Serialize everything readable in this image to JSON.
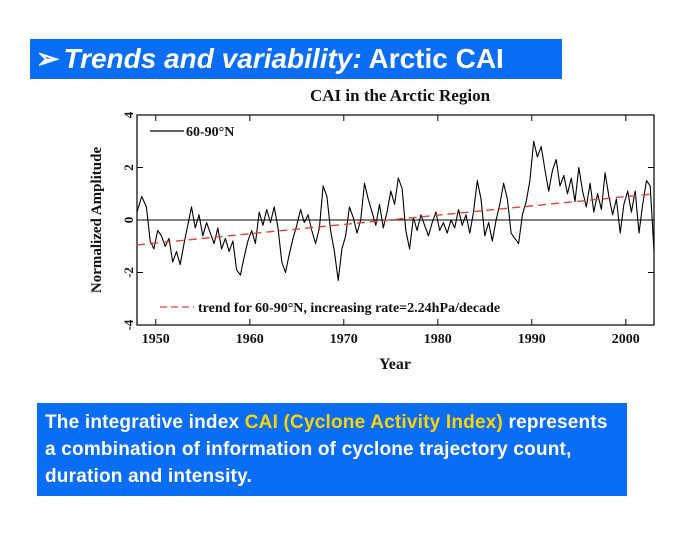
{
  "slide": {
    "title_arrow": "➢",
    "title_italic": "Trends and variability:",
    "title_rest": "Arctic CAI",
    "colors": {
      "banner_bg": "#0a6df5",
      "highlight": "#ffd400",
      "trend": "#e0443a"
    }
  },
  "info": {
    "text_before": "The integrative index",
    "highlight": "CAI (Cyclone Activity Index)",
    "text_after": "represents a combination of information of cyclone trajectory count, duration and intensity."
  },
  "chart_data": {
    "type": "line",
    "title": "CAI in the Arctic Region",
    "xlabel": "Year",
    "ylabel": "Normalized Amplitude",
    "xlim": [
      1948,
      2003
    ],
    "ylim": [
      -4,
      4
    ],
    "x_ticks": [
      1950,
      1960,
      1970,
      1980,
      1990,
      2000
    ],
    "y_ticks": [
      -4,
      -2,
      0,
      2,
      4
    ],
    "zero_line": true,
    "legend_position": "top-left",
    "series": [
      {
        "name": "60-90°N",
        "color": "#000000",
        "x": [
          1948.0,
          1948.5,
          1949.0,
          1949.4,
          1949.8,
          1950.2,
          1950.6,
          1951.0,
          1951.4,
          1951.8,
          1952.2,
          1952.6,
          1953.0,
          1953.4,
          1953.8,
          1954.2,
          1954.6,
          1955.0,
          1955.4,
          1955.8,
          1956.2,
          1956.6,
          1957.0,
          1957.4,
          1957.8,
          1958.2,
          1958.6,
          1959.0,
          1959.4,
          1959.8,
          1960.2,
          1960.6,
          1961.0,
          1961.4,
          1961.8,
          1962.2,
          1962.6,
          1963.0,
          1963.4,
          1963.8,
          1964.2,
          1964.6,
          1965.0,
          1965.4,
          1965.8,
          1966.2,
          1966.6,
          1967.0,
          1967.4,
          1967.8,
          1968.2,
          1968.6,
          1969.0,
          1969.4,
          1969.8,
          1970.2,
          1970.6,
          1971.0,
          1971.4,
          1971.8,
          1972.2,
          1972.6,
          1973.0,
          1973.4,
          1973.8,
          1974.2,
          1974.6,
          1975.0,
          1975.4,
          1975.8,
          1976.2,
          1976.6,
          1977.0,
          1977.4,
          1977.8,
          1978.2,
          1978.6,
          1979.0,
          1979.4,
          1979.8,
          1980.2,
          1980.6,
          1981.0,
          1981.4,
          1981.8,
          1982.2,
          1982.6,
          1983.0,
          1983.4,
          1983.8,
          1984.2,
          1984.6,
          1985.0,
          1985.4,
          1985.8,
          1986.2,
          1986.6,
          1987.0,
          1987.4,
          1987.8,
          1988.2,
          1988.6,
          1989.0,
          1989.4,
          1989.8,
          1990.2,
          1990.6,
          1991.0,
          1991.4,
          1991.8,
          1992.2,
          1992.6,
          1993.0,
          1993.4,
          1993.8,
          1994.2,
          1994.6,
          1995.0,
          1995.4,
          1995.8,
          1996.2,
          1996.6,
          1997.0,
          1997.4,
          1997.8,
          1998.2,
          1998.6,
          1999.0,
          1999.4,
          1999.8,
          2000.2,
          2000.6,
          2001.0,
          2001.4,
          2001.8,
          2002.2,
          2002.6,
          2003.0
        ],
        "values": [
          0.3,
          0.9,
          0.5,
          -0.8,
          -1.1,
          -0.4,
          -0.6,
          -1.0,
          -0.7,
          -1.6,
          -1.2,
          -1.7,
          -0.9,
          -0.2,
          0.5,
          -0.3,
          0.2,
          -0.6,
          -0.1,
          -0.5,
          -0.9,
          -0.3,
          -1.1,
          -0.7,
          -1.2,
          -0.8,
          -1.9,
          -2.1,
          -1.4,
          -0.8,
          -0.4,
          -0.9,
          0.3,
          -0.2,
          0.4,
          -0.1,
          0.5,
          -0.3,
          -1.6,
          -2.0,
          -1.3,
          -0.7,
          -0.2,
          0.4,
          -0.1,
          0.2,
          -0.4,
          -0.9,
          -0.3,
          1.3,
          0.9,
          -0.4,
          -1.2,
          -2.3,
          -1.1,
          -0.6,
          0.5,
          0.1,
          -0.5,
          0.0,
          1.4,
          0.8,
          0.3,
          -0.2,
          0.6,
          -0.3,
          0.3,
          1.1,
          0.6,
          1.6,
          1.2,
          -0.4,
          -1.1,
          0.1,
          -0.4,
          0.2,
          -0.2,
          -0.6,
          -0.1,
          0.3,
          -0.4,
          -0.1,
          -0.5,
          0.0,
          -0.3,
          0.4,
          -0.2,
          0.2,
          -0.5,
          0.3,
          1.5,
          0.8,
          -0.6,
          -0.1,
          -0.8,
          0.0,
          0.6,
          1.4,
          0.8,
          -0.5,
          -0.7,
          -0.9,
          0.2,
          0.7,
          1.5,
          3.0,
          2.4,
          2.8,
          1.9,
          1.1,
          1.9,
          2.3,
          1.3,
          1.7,
          1.0,
          1.6,
          0.7,
          2.0,
          1.1,
          0.5,
          1.4,
          0.3,
          1.0,
          0.4,
          1.8,
          0.9,
          0.2,
          0.8,
          -0.5,
          0.6,
          1.1,
          0.3,
          1.1,
          -0.5,
          0.6,
          1.5,
          1.3,
          -1.2
        ]
      },
      {
        "name": "trend for 60-90°N, increasing rate=2.24hPa/decade",
        "color": "#e0443a",
        "style": "dashed",
        "x": [
          1948,
          2003
        ],
        "values": [
          -0.95,
          1.0
        ]
      }
    ]
  }
}
